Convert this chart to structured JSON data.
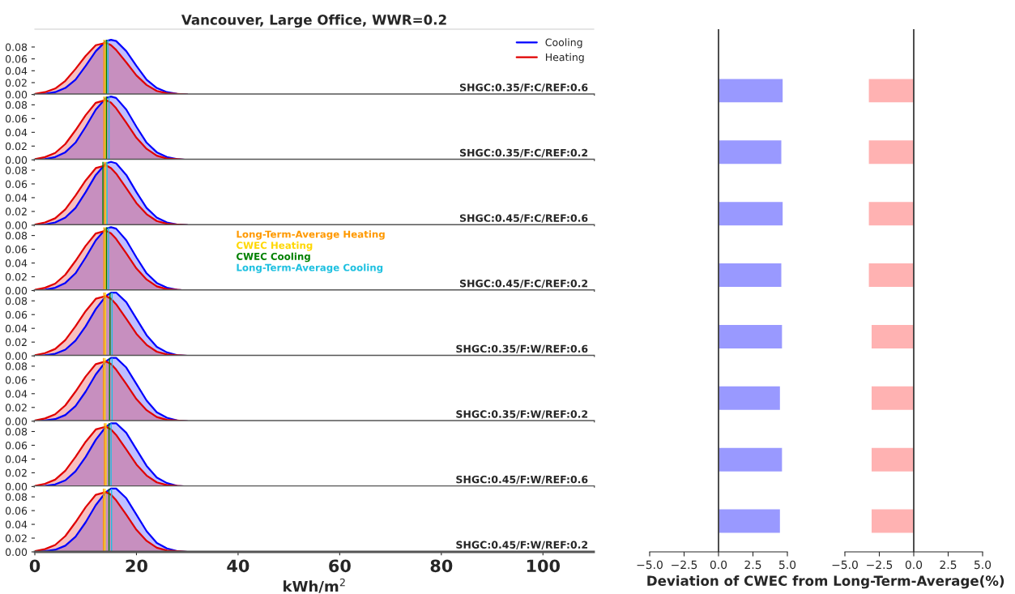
{
  "chart_data": [
    {
      "type": "area",
      "title": "Vancouver, Large Office, WWR=0.2",
      "x": [
        0,
        2,
        4,
        6,
        8,
        10,
        12,
        14,
        15,
        16,
        18,
        20,
        22,
        24,
        26,
        28,
        30
      ],
      "xlim": [
        0,
        110
      ],
      "ylim": [
        0,
        0.11
      ],
      "yticks": [
        {
          "value": 0,
          "label": "0.00"
        },
        {
          "value": 0.02,
          "label": "0.02"
        },
        {
          "value": 0.04,
          "label": "0.04"
        },
        {
          "value": 0.06,
          "label": "0.06"
        },
        {
          "value": 0.08,
          "label": "0.08"
        }
      ],
      "tick_labels": "y",
      "legend": "top right",
      "series": [
        {
          "name": "Cooling",
          "color": "#0000ff",
          "values": [
            0,
            0.001,
            0.004,
            0.011,
            0.025,
            0.048,
            0.073,
            0.09,
            0.092,
            0.09,
            0.073,
            0.048,
            0.025,
            0.011,
            0.004,
            0.001,
            0
          ]
        },
        {
          "name": "Heating",
          "color": "#e00000",
          "values": [
            0.001,
            0.004,
            0.01,
            0.023,
            0.043,
            0.065,
            0.083,
            0.087,
            0.083,
            0.075,
            0.054,
            0.032,
            0.016,
            0.006,
            0.002,
            0.001,
            0
          ]
        }
      ],
      "ref_lines": [
        {
          "axis": "x",
          "value": 13.6,
          "color": "#ff9900"
        },
        {
          "axis": "x",
          "value": 13.9,
          "color": "#ffd700"
        },
        {
          "axis": "x",
          "value": 14.1,
          "color": "#008000"
        },
        {
          "axis": "x",
          "value": 14.4,
          "color": "#1ec0e0"
        }
      ],
      "annotations": [
        "SHGC:0.35/F:C/REF:0.6"
      ]
    },
    {
      "type": "area",
      "x": [
        0,
        2,
        4,
        6,
        8,
        10,
        12,
        14,
        15,
        16,
        18,
        20,
        22,
        24,
        26,
        28,
        30
      ],
      "xlim": [
        0,
        110
      ],
      "ylim": [
        0,
        0.095
      ],
      "yticks": [
        {
          "value": 0,
          "label": "0.00"
        },
        {
          "value": 0.02,
          "label": "0.02"
        },
        {
          "value": 0.04,
          "label": "0.04"
        },
        {
          "value": 0.06,
          "label": "0.06"
        },
        {
          "value": 0.08,
          "label": "0.08"
        }
      ],
      "tick_labels": "y",
      "series": [
        {
          "color": "#0000ff",
          "values": [
            0,
            0.001,
            0.004,
            0.011,
            0.025,
            0.048,
            0.073,
            0.09,
            0.092,
            0.09,
            0.073,
            0.048,
            0.025,
            0.011,
            0.004,
            0.001,
            0
          ]
        },
        {
          "color": "#e00000",
          "values": [
            0.001,
            0.004,
            0.01,
            0.023,
            0.043,
            0.065,
            0.083,
            0.087,
            0.083,
            0.075,
            0.054,
            0.032,
            0.016,
            0.006,
            0.002,
            0.001,
            0
          ]
        }
      ],
      "ref_lines": [
        {
          "axis": "x",
          "value": 13.6,
          "color": "#ff9900"
        },
        {
          "axis": "x",
          "value": 13.9,
          "color": "#ffd700"
        },
        {
          "axis": "x",
          "value": 14.1,
          "color": "#008000"
        },
        {
          "axis": "x",
          "value": 14.6,
          "color": "#1ec0e0"
        }
      ],
      "annotations": [
        "SHGC:0.35/F:C/REF:0.2"
      ]
    },
    {
      "type": "area",
      "x": [
        0,
        2,
        4,
        6,
        8,
        10,
        12,
        14,
        15,
        16,
        18,
        20,
        22,
        24,
        26,
        28,
        30
      ],
      "xlim": [
        0,
        110
      ],
      "ylim": [
        0,
        0.095
      ],
      "yticks": [
        {
          "value": 0,
          "label": "0.00"
        },
        {
          "value": 0.02,
          "label": "0.02"
        },
        {
          "value": 0.04,
          "label": "0.04"
        },
        {
          "value": 0.06,
          "label": "0.06"
        },
        {
          "value": 0.08,
          "label": "0.08"
        }
      ],
      "tick_labels": "y",
      "series": [
        {
          "color": "#0000ff",
          "values": [
            0,
            0.001,
            0.004,
            0.011,
            0.025,
            0.048,
            0.073,
            0.09,
            0.092,
            0.09,
            0.073,
            0.048,
            0.025,
            0.011,
            0.004,
            0.001,
            0
          ]
        },
        {
          "color": "#e00000",
          "values": [
            0.001,
            0.004,
            0.01,
            0.023,
            0.043,
            0.065,
            0.083,
            0.087,
            0.083,
            0.075,
            0.054,
            0.032,
            0.016,
            0.006,
            0.002,
            0.001,
            0
          ]
        }
      ],
      "ref_lines": [
        {
          "axis": "x",
          "value": 13.4,
          "color": "#008000"
        },
        {
          "axis": "x",
          "value": 13.7,
          "color": "#ff9900"
        },
        {
          "axis": "x",
          "value": 14.0,
          "color": "#ffd700"
        },
        {
          "axis": "x",
          "value": 14.2,
          "color": "#1ec0e0"
        }
      ],
      "annotations": [
        "SHGC:0.45/F:C/REF:0.6"
      ]
    },
    {
      "type": "area",
      "x": [
        0,
        2,
        4,
        6,
        8,
        10,
        12,
        14,
        15,
        16,
        18,
        20,
        22,
        24,
        26,
        28,
        30
      ],
      "xlim": [
        0,
        110
      ],
      "ylim": [
        0,
        0.095
      ],
      "yticks": [
        {
          "value": 0,
          "label": "0.00"
        },
        {
          "value": 0.02,
          "label": "0.02"
        },
        {
          "value": 0.04,
          "label": "0.04"
        },
        {
          "value": 0.06,
          "label": "0.06"
        },
        {
          "value": 0.08,
          "label": "0.08"
        }
      ],
      "tick_labels": "y",
      "series": [
        {
          "color": "#0000ff",
          "values": [
            0,
            0.001,
            0.004,
            0.011,
            0.025,
            0.048,
            0.073,
            0.09,
            0.092,
            0.09,
            0.073,
            0.048,
            0.025,
            0.011,
            0.004,
            0.001,
            0
          ]
        },
        {
          "color": "#e00000",
          "values": [
            0.001,
            0.004,
            0.01,
            0.023,
            0.043,
            0.065,
            0.083,
            0.087,
            0.083,
            0.075,
            0.054,
            0.032,
            0.016,
            0.006,
            0.002,
            0.001,
            0
          ]
        }
      ],
      "ref_lines": [
        {
          "axis": "x",
          "value": 13.6,
          "color": "#ff9900",
          "label": "Long-Term-Average Heating"
        },
        {
          "axis": "x",
          "value": 13.9,
          "color": "#ffd700",
          "label": "CWEC Heating"
        },
        {
          "axis": "x",
          "value": 14.1,
          "color": "#008000",
          "label": "CWEC Cooling"
        },
        {
          "axis": "x",
          "value": 14.5,
          "color": "#1ec0e0",
          "label": "Long-Term-Average Cooling"
        }
      ],
      "annotations": [
        "SHGC:0.45/F:C/REF:0.2"
      ]
    },
    {
      "type": "area",
      "x": [
        0,
        2,
        4,
        6,
        8,
        10,
        12,
        14,
        15,
        16,
        18,
        20,
        22,
        24,
        26,
        28,
        30
      ],
      "xlim": [
        0,
        110
      ],
      "ylim": [
        0,
        0.095
      ],
      "yticks": [
        {
          "value": 0,
          "label": "0.00"
        },
        {
          "value": 0.02,
          "label": "0.02"
        },
        {
          "value": 0.04,
          "label": "0.04"
        },
        {
          "value": 0.06,
          "label": "0.06"
        },
        {
          "value": 0.08,
          "label": "0.08"
        }
      ],
      "tick_labels": "y",
      "series": [
        {
          "color": "#0000ff",
          "values": [
            0,
            0.001,
            0.003,
            0.009,
            0.022,
            0.043,
            0.068,
            0.087,
            0.092,
            0.092,
            0.078,
            0.054,
            0.03,
            0.013,
            0.005,
            0.001,
            0
          ]
        },
        {
          "color": "#e00000",
          "values": [
            0.001,
            0.004,
            0.01,
            0.023,
            0.043,
            0.065,
            0.083,
            0.087,
            0.083,
            0.075,
            0.054,
            0.032,
            0.016,
            0.006,
            0.002,
            0.001,
            0
          ]
        }
      ],
      "ref_lines": [
        {
          "axis": "x",
          "value": 13.6,
          "color": "#ff9900"
        },
        {
          "axis": "x",
          "value": 13.9,
          "color": "#ffd700"
        },
        {
          "axis": "x",
          "value": 14.8,
          "color": "#008000"
        },
        {
          "axis": "x",
          "value": 15.2,
          "color": "#1ec0e0"
        }
      ],
      "annotations": [
        "SHGC:0.35/F:W/REF:0.6"
      ]
    },
    {
      "type": "area",
      "x": [
        0,
        2,
        4,
        6,
        8,
        10,
        12,
        14,
        15,
        16,
        18,
        20,
        22,
        24,
        26,
        28,
        30
      ],
      "xlim": [
        0,
        110
      ],
      "ylim": [
        0,
        0.095
      ],
      "yticks": [
        {
          "value": 0,
          "label": "0.00"
        },
        {
          "value": 0.02,
          "label": "0.02"
        },
        {
          "value": 0.04,
          "label": "0.04"
        },
        {
          "value": 0.06,
          "label": "0.06"
        },
        {
          "value": 0.08,
          "label": "0.08"
        }
      ],
      "tick_labels": "y",
      "series": [
        {
          "color": "#0000ff",
          "values": [
            0,
            0.001,
            0.003,
            0.009,
            0.022,
            0.043,
            0.068,
            0.087,
            0.092,
            0.092,
            0.078,
            0.054,
            0.03,
            0.013,
            0.005,
            0.001,
            0
          ]
        },
        {
          "color": "#e00000",
          "values": [
            0.001,
            0.004,
            0.01,
            0.023,
            0.043,
            0.065,
            0.083,
            0.087,
            0.083,
            0.075,
            0.054,
            0.032,
            0.016,
            0.006,
            0.002,
            0.001,
            0
          ]
        }
      ],
      "ref_lines": [
        {
          "axis": "x",
          "value": 13.5,
          "color": "#ff9900"
        },
        {
          "axis": "x",
          "value": 13.8,
          "color": "#ffd700"
        },
        {
          "axis": "x",
          "value": 14.7,
          "color": "#008000"
        },
        {
          "axis": "x",
          "value": 15.2,
          "color": "#1ec0e0"
        }
      ],
      "annotations": [
        "SHGC:0.35/F:W/REF:0.2"
      ]
    },
    {
      "type": "area",
      "x": [
        0,
        2,
        4,
        6,
        8,
        10,
        12,
        14,
        15,
        16,
        18,
        20,
        22,
        24,
        26,
        28,
        30
      ],
      "xlim": [
        0,
        110
      ],
      "ylim": [
        0,
        0.095
      ],
      "yticks": [
        {
          "value": 0,
          "label": "0.00"
        },
        {
          "value": 0.02,
          "label": "0.02"
        },
        {
          "value": 0.04,
          "label": "0.04"
        },
        {
          "value": 0.06,
          "label": "0.06"
        },
        {
          "value": 0.08,
          "label": "0.08"
        }
      ],
      "tick_labels": "y",
      "series": [
        {
          "color": "#0000ff",
          "values": [
            0,
            0.001,
            0.003,
            0.009,
            0.022,
            0.043,
            0.068,
            0.087,
            0.092,
            0.092,
            0.078,
            0.054,
            0.03,
            0.013,
            0.005,
            0.001,
            0
          ]
        },
        {
          "color": "#e00000",
          "values": [
            0.001,
            0.004,
            0.01,
            0.023,
            0.043,
            0.065,
            0.083,
            0.087,
            0.083,
            0.075,
            0.054,
            0.032,
            0.016,
            0.006,
            0.002,
            0.001,
            0
          ]
        }
      ],
      "ref_lines": [
        {
          "axis": "x",
          "value": 13.7,
          "color": "#ff9900"
        },
        {
          "axis": "x",
          "value": 14.0,
          "color": "#ffd700"
        },
        {
          "axis": "x",
          "value": 14.6,
          "color": "#008000"
        },
        {
          "axis": "x",
          "value": 15.0,
          "color": "#1ec0e0"
        }
      ],
      "annotations": [
        "SHGC:0.45/F:W/REF:0.6"
      ]
    },
    {
      "type": "area",
      "x": [
        0,
        2,
        4,
        6,
        8,
        10,
        12,
        14,
        15,
        16,
        18,
        20,
        22,
        24,
        26,
        28,
        30
      ],
      "xlim": [
        0,
        110
      ],
      "ylim": [
        0,
        0.095
      ],
      "xticks": [
        0,
        20,
        40,
        60,
        80,
        100
      ],
      "xlabel": "kWh/m$^{2}$",
      "yticks": [
        {
          "value": 0,
          "label": "0.00"
        },
        {
          "value": 0.02,
          "label": "0.02"
        },
        {
          "value": 0.04,
          "label": "0.04"
        },
        {
          "value": 0.06,
          "label": "0.06"
        },
        {
          "value": 0.08,
          "label": "0.08"
        }
      ],
      "series": [
        {
          "color": "#0000ff",
          "values": [
            0,
            0.001,
            0.003,
            0.009,
            0.022,
            0.043,
            0.068,
            0.087,
            0.092,
            0.092,
            0.078,
            0.054,
            0.03,
            0.013,
            0.005,
            0.001,
            0
          ]
        },
        {
          "color": "#e00000",
          "values": [
            0.001,
            0.004,
            0.01,
            0.023,
            0.043,
            0.065,
            0.083,
            0.087,
            0.083,
            0.075,
            0.054,
            0.032,
            0.016,
            0.006,
            0.002,
            0.001,
            0
          ]
        }
      ],
      "ref_lines": [
        {
          "axis": "x",
          "value": 13.5,
          "color": "#ff9900"
        },
        {
          "axis": "x",
          "value": 13.8,
          "color": "#ffd700"
        },
        {
          "axis": "x",
          "value": 14.6,
          "color": "#008000"
        },
        {
          "axis": "x",
          "value": 15.1,
          "color": "#1ec0e0"
        }
      ],
      "annotations": [
        "SHGC:0.45/F:W/REF:0.2"
      ]
    },
    {
      "type": "bar",
      "orientation": "horizontal",
      "categories": [
        null,
        null,
        null,
        null,
        null,
        null,
        null,
        null
      ],
      "values": [
        4.7,
        4.6,
        4.7,
        4.6,
        4.65,
        4.5,
        4.65,
        4.5
      ],
      "color": "#9999ff",
      "xlim": [
        -5,
        5
      ],
      "xticks": [
        {
          "value": -5,
          "label": "−5.0"
        },
        {
          "value": -2.5,
          "label": "−2.5"
        },
        {
          "value": 0,
          "label": "0.0"
        },
        {
          "value": 2.5,
          "label": "2.5"
        },
        {
          "value": 5,
          "label": "5.0"
        }
      ],
      "tick_labels": "x",
      "ref_lines": [
        {
          "axis": "x",
          "value": 0,
          "color": "#000000"
        }
      ]
    },
    {
      "type": "bar",
      "orientation": "horizontal",
      "categories": [
        null,
        null,
        null,
        null,
        null,
        null,
        null,
        null
      ],
      "values": [
        -3.3,
        -3.3,
        -3.3,
        -3.3,
        -3.1,
        -3.1,
        -3.1,
        -3.1
      ],
      "color": "#ffb2b2",
      "xlim": [
        -5,
        5
      ],
      "xticks": [
        {
          "value": -5,
          "label": "−5.0"
        },
        {
          "value": -2.5,
          "label": "−2.5"
        },
        {
          "value": 0,
          "label": "0.0"
        },
        {
          "value": 2.5,
          "label": "2.5"
        },
        {
          "value": 5,
          "label": "5.0"
        }
      ],
      "tick_labels": "x",
      "xlabel": "Deviation of CWEC from Long-Term-Average(%)",
      "ref_lines": [
        {
          "axis": "x",
          "value": 0,
          "color": "#000000"
        }
      ]
    }
  ]
}
